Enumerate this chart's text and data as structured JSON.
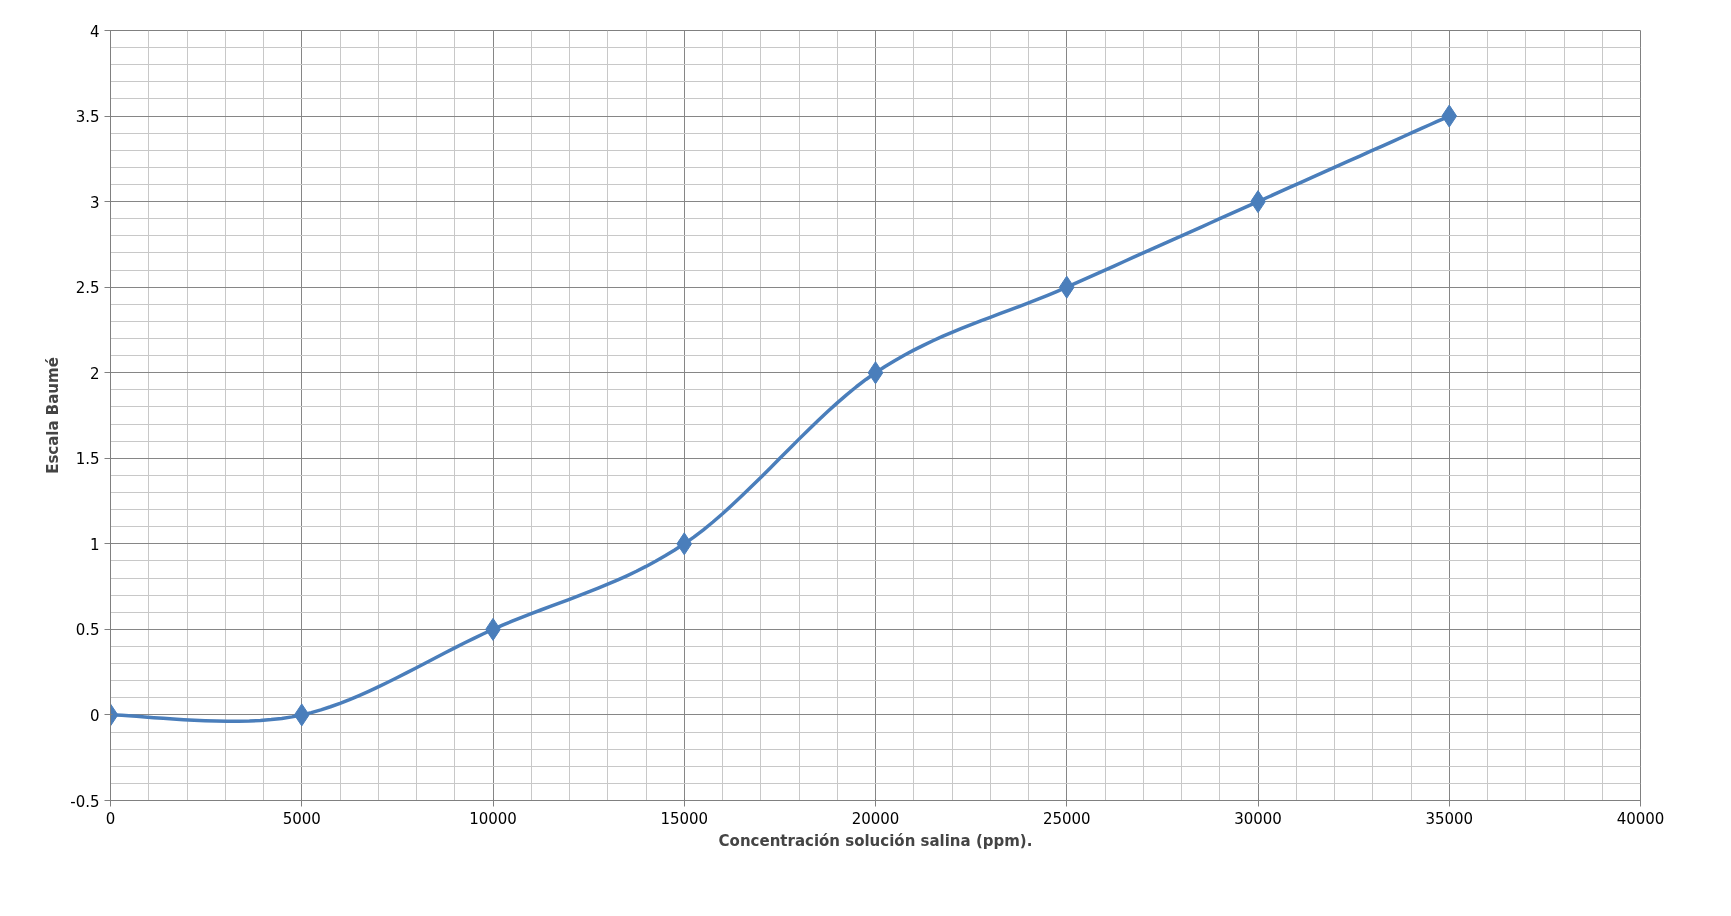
{
  "chart_data": {
    "type": "line",
    "xlabel": "Concentración solución salina (ppm).",
    "ylabel": "Escala Baumé",
    "x": [
      0,
      5000,
      10000,
      15000,
      20000,
      25000,
      30000,
      35000
    ],
    "series": [
      {
        "color": "#4a7ebb",
        "values": [
          0,
          0,
          0.5,
          1,
          2,
          2.5,
          3,
          3.5
        ]
      }
    ],
    "xlim": [
      0,
      40000
    ],
    "xticks": [
      0,
      5000,
      10000,
      15000,
      20000,
      25000,
      30000,
      35000,
      40000
    ],
    "ylim": [
      -0.5,
      4
    ],
    "yticks": [
      -0.5,
      0,
      0.5,
      1,
      1.5,
      2,
      2.5,
      3,
      3.5,
      4
    ],
    "grid": true,
    "marker": "diamond",
    "line_style": "solid"
  }
}
